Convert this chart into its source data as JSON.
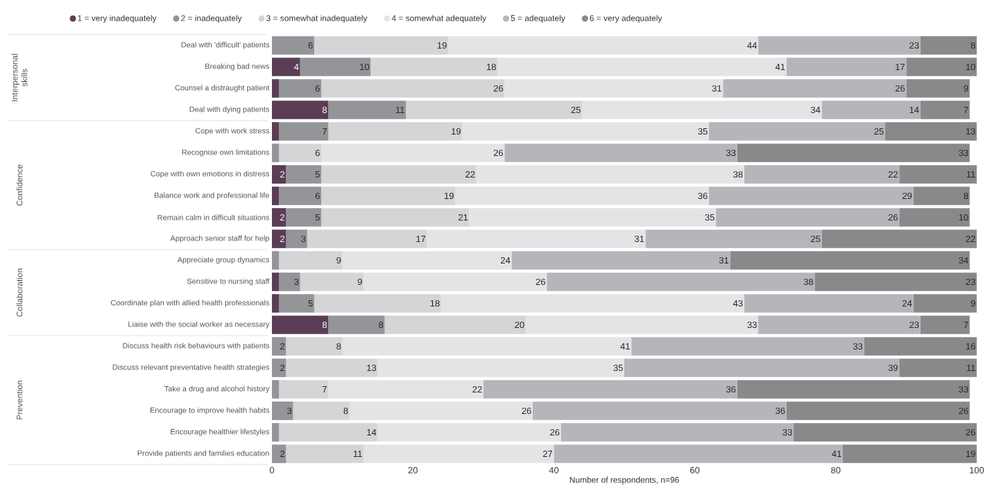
{
  "chart_data": {
    "type": "bar",
    "orientation": "horizontal",
    "stacked": true,
    "categories": [
      "Deal with 'difficult' patients",
      "Breaking bad news",
      "Counsel a distraught patient",
      "Deal with dying patients",
      "Cope with work stress",
      "Recognise own limitations",
      "Cope with own emotions in distress",
      "Balance work and professional life",
      "Remain calm in difficult situations",
      "Approach senior staff for help",
      "Appreciate group dynamics",
      "Sensitive to nursing staff",
      "Coordinate plan with allied health professionals",
      "Liaise with the social worker as necessary",
      "Discuss health risk behaviours with patients",
      "Discuss relevant preventative health strategies",
      "Take a drug and alcohol history",
      "Encourage to improve health habits",
      "Encourage healthier lifestyles",
      "Provide patients and families education"
    ],
    "series": [
      {
        "name": "1 = very inadequately",
        "color": "#5a3d55",
        "values": [
          0,
          4,
          1,
          8,
          1,
          0,
          2,
          1,
          2,
          2,
          0,
          1,
          1,
          8,
          0,
          0,
          0,
          0,
          0,
          0
        ],
        "value_labels": [
          null,
          "4",
          null,
          "8",
          null,
          null,
          "2",
          null,
          "2",
          "2",
          null,
          null,
          null,
          "8",
          null,
          null,
          null,
          null,
          null,
          null
        ]
      },
      {
        "name": "2 = inadequately",
        "color": "#939598",
        "values": [
          6,
          10,
          6,
          11,
          7,
          1,
          5,
          6,
          5,
          3,
          1,
          3,
          5,
          8,
          2,
          2,
          1,
          3,
          1,
          2
        ],
        "value_labels": [
          "6",
          "10",
          "6",
          "11",
          "7",
          null,
          "5",
          "6",
          "5",
          "3",
          null,
          "3",
          "5",
          "8",
          "2",
          "2",
          null,
          "3",
          null,
          "2"
        ]
      },
      {
        "name": "3 = somewhat inadequately",
        "color": "#d4d5d7",
        "values": [
          19,
          18,
          26,
          25,
          19,
          6,
          22,
          19,
          21,
          17,
          9,
          9,
          18,
          20,
          8,
          13,
          7,
          8,
          14,
          11
        ],
        "value_labels": [
          "19",
          "18",
          "26",
          "25",
          "19",
          "6",
          "22",
          "19",
          "21",
          "17",
          "9",
          "9",
          "18",
          "20",
          "8",
          "13",
          "7",
          "8",
          "14",
          "11"
        ]
      },
      {
        "name": "4 = somewhat adequately",
        "color": "#e3e4e6",
        "values": [
          44,
          41,
          31,
          34,
          35,
          26,
          38,
          36,
          35,
          31,
          24,
          26,
          43,
          33,
          41,
          35,
          22,
          26,
          26,
          27
        ],
        "value_labels": [
          "44",
          "41",
          "31",
          "34",
          "35",
          "26",
          "38",
          "36",
          "35",
          "31",
          "24",
          "26",
          "43",
          "33",
          "41",
          "35",
          "22",
          "26",
          "26",
          "27"
        ]
      },
      {
        "name": "5 = adequately",
        "color": "#b4b6ba",
        "values": [
          23,
          17,
          26,
          14,
          25,
          33,
          22,
          29,
          26,
          25,
          31,
          38,
          24,
          23,
          33,
          39,
          36,
          36,
          33,
          41
        ],
        "value_labels": [
          "23",
          "17",
          "26",
          "14",
          "25",
          "33",
          "22",
          "29",
          "26",
          "25",
          "31",
          "38",
          "24",
          "23",
          "33",
          "39",
          "36",
          "36",
          "33",
          "41"
        ]
      },
      {
        "name": "6 = very adequately",
        "color": "#87898b",
        "values": [
          8,
          10,
          9,
          7,
          13,
          33,
          11,
          8,
          10,
          22,
          34,
          23,
          9,
          7,
          16,
          11,
          33,
          26,
          26,
          19
        ],
        "value_labels": [
          "8",
          "10",
          "9",
          "7",
          "13",
          "33",
          "11",
          "8",
          "10",
          "22",
          "34",
          "23",
          "9",
          "7",
          "16",
          "11",
          "33",
          "26",
          "26",
          "19"
        ]
      }
    ],
    "xlim": [
      0,
      100
    ],
    "xticks": [
      0,
      20,
      40,
      60,
      80,
      100
    ],
    "xlabel": "Number of respondents, n=96",
    "legend": "top",
    "marker": "circle",
    "annotations": [
      "Interpersonal skills",
      "Confidence",
      "Collaboration",
      "Prevention"
    ]
  }
}
